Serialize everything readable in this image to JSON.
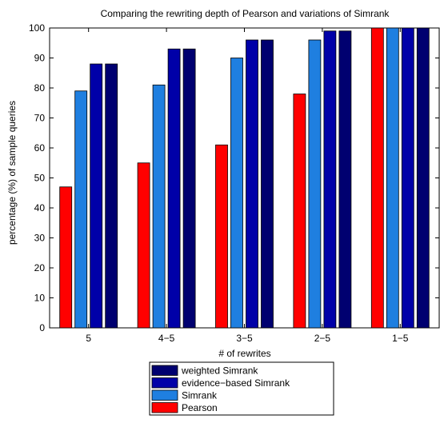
{
  "chart_data": {
    "type": "bar",
    "title": "Comparing the rewriting depth of Pearson and variations of Simrank",
    "xlabel": "# of rewrites",
    "ylabel": "percentage (%) of sample queries",
    "categories": [
      "5",
      "4−5",
      "3−5",
      "2−5",
      "1−5"
    ],
    "ylim": [
      0,
      100
    ],
    "yticks": [
      "0",
      "10",
      "20",
      "30",
      "40",
      "50",
      "60",
      "70",
      "80",
      "90",
      "100"
    ],
    "grid": false,
    "legend_position": "bottom",
    "series": [
      {
        "name": "Pearson",
        "color": "#ff0000",
        "values": [
          47,
          55,
          61,
          78,
          100
        ]
      },
      {
        "name": "Simrank",
        "color": "#1f7fe0",
        "values": [
          79,
          81,
          90,
          96,
          100
        ]
      },
      {
        "name": "evidence−based Simrank",
        "color": "#0000a8",
        "values": [
          88,
          93,
          96,
          99,
          100
        ]
      },
      {
        "name": "weighted Simrank",
        "color": "#000070",
        "values": [
          88,
          93,
          96,
          99,
          100
        ]
      }
    ],
    "legend_order": [
      "weighted Simrank",
      "evidence−based Simrank",
      "Simrank",
      "Pearson"
    ]
  }
}
